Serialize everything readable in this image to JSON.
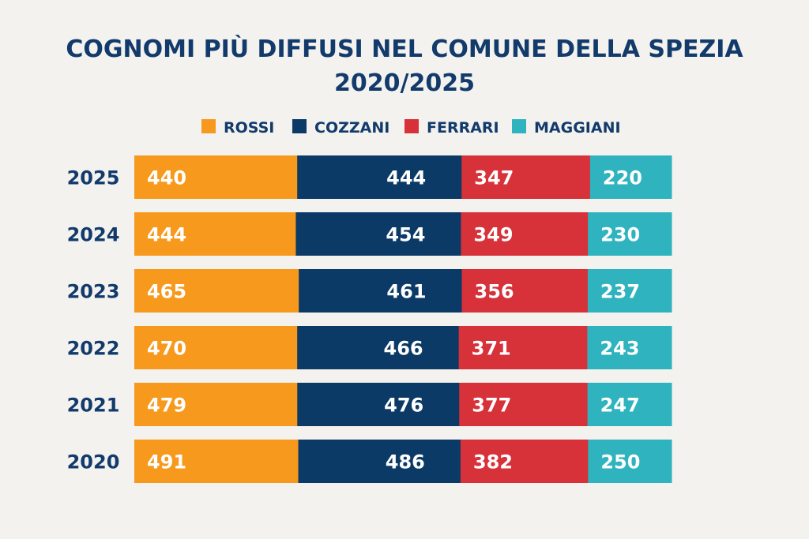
{
  "chart_data": {
    "type": "bar",
    "orientation": "horizontal",
    "stacked": true,
    "title": "COGNOMI PIÙ DIFFUSI NEL COMUNE DELLA SPEZIA",
    "subtitle": "2020/2025",
    "categories": [
      "2025",
      "2024",
      "2023",
      "2022",
      "2021",
      "2020"
    ],
    "series": [
      {
        "name": "ROSSI",
        "color": "#F7991C",
        "values": [
          440,
          444,
          465,
          470,
          479,
          491
        ]
      },
      {
        "name": "COZZANI",
        "color": "#0B3A66",
        "values": [
          444,
          454,
          461,
          466,
          476,
          486
        ]
      },
      {
        "name": "FERRARI",
        "color": "#D7313A",
        "values": [
          347,
          349,
          356,
          371,
          377,
          382
        ]
      },
      {
        "name": "MAGGIANI",
        "color": "#2FB3BE",
        "values": [
          220,
          230,
          237,
          243,
          247,
          250
        ]
      }
    ],
    "legend_position": "top",
    "grid": false,
    "xlabel": "",
    "ylabel": ""
  }
}
